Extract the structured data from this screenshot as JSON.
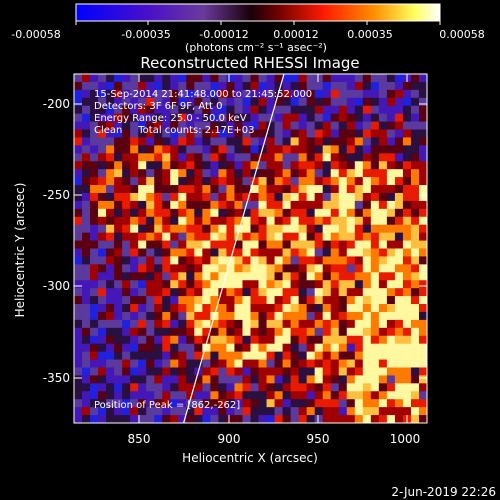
{
  "colorbar": {
    "tick_labels": [
      "-0.00058",
      "-0.00035",
      "-0.00012",
      "0.00012",
      "0.00035",
      "0.00058"
    ],
    "units_label": "(photons cm⁻² s⁻¹ asec⁻²)",
    "colors": [
      "#0000ff",
      "#3a00cc",
      "#5a2aa8",
      "#1a0010",
      "#7a0000",
      "#ff2000",
      "#ff8000",
      "#ffff80",
      "#ffffff"
    ]
  },
  "plot": {
    "title": "Reconstructed RHESSI Image",
    "xlabel": "Heliocentric X (arcsec)",
    "ylabel": "Heliocentric Y (arcsec)",
    "x_ticks": [
      "850",
      "900",
      "950",
      "1000"
    ],
    "y_ticks": [
      "-200",
      "-250",
      "-300",
      "-350"
    ],
    "xlim": [
      818,
      1015
    ],
    "ylim": [
      -375,
      -184
    ],
    "annotations": {
      "time": "15-Sep-2014 21:41:48.000 to 21:45:52.000",
      "detectors": "Detectors: 3F 6F 9F, Att 0",
      "energy": "Energy Range: 25.0 - 50.0 keV",
      "counts": "Clean     Total counts: 2.17E+03",
      "peak": "Position of Peak = [862,-262]"
    }
  },
  "footer": {
    "date": "2-Jun-2019 22:26"
  }
}
